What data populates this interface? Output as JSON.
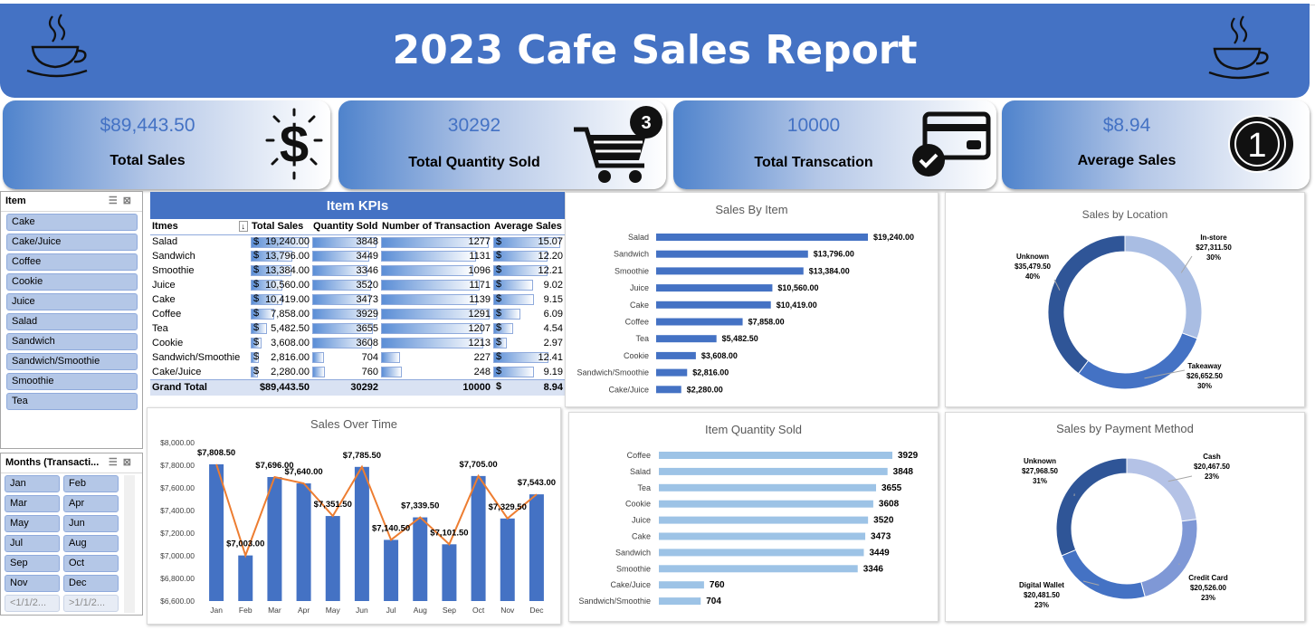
{
  "header": {
    "title": "2023 Cafe Sales Report"
  },
  "kpis": [
    {
      "value": "$89,443.50",
      "label": "Total Sales",
      "icon": "dollar-icon"
    },
    {
      "value": "30292",
      "label": "Total Quantity Sold",
      "icon": "shopping-cart-icon",
      "badge": "3"
    },
    {
      "value": "10000",
      "label": "Total Transcation",
      "icon": "credit-card-icon"
    },
    {
      "value": "$8.94",
      "label": "Average Sales",
      "icon": "coin-icon",
      "coin": "1"
    }
  ],
  "item_slicer": {
    "title": "Item",
    "items": [
      "Cake",
      "Cake/Juice",
      "Coffee",
      "Cookie",
      "Juice",
      "Salad",
      "Sandwich",
      "Sandwich/Smoothie",
      "Smoothie",
      "Tea"
    ]
  },
  "month_slicer": {
    "title": "Months (Transacti...",
    "items": [
      "Jan",
      "Feb",
      "Mar",
      "Apr",
      "May",
      "Jun",
      "Jul",
      "Aug",
      "Sep",
      "Oct",
      "Nov",
      "Dec",
      "<1/1/2...",
      ">1/1/2..."
    ]
  },
  "item_kpis": {
    "title": "Item KPIs",
    "headers": [
      "Itmes",
      "Total Sales",
      "Quantity Sold",
      "Number of Transaction",
      "Average Sales"
    ],
    "rows": [
      {
        "item": "Salad",
        "sales_d": "$",
        "sales": "19,240.00",
        "sales_v": 19240,
        "qty": 3848,
        "trans": 1277,
        "avg_d": "$",
        "avg": "15.07",
        "avg_v": 15.07
      },
      {
        "item": "Sandwich",
        "sales_d": "$",
        "sales": "13,796.00",
        "sales_v": 13796,
        "qty": 3449,
        "trans": 1131,
        "avg_d": "$",
        "avg": "12.20",
        "avg_v": 12.2
      },
      {
        "item": "Smoothie",
        "sales_d": "$",
        "sales": "13,384.00",
        "sales_v": 13384,
        "qty": 3346,
        "trans": 1096,
        "avg_d": "$",
        "avg": "12.21",
        "avg_v": 12.21
      },
      {
        "item": "Juice",
        "sales_d": "$",
        "sales": "10,560.00",
        "sales_v": 10560,
        "qty": 3520,
        "trans": 1171,
        "avg_d": "$",
        "avg": "9.02",
        "avg_v": 9.02
      },
      {
        "item": "Cake",
        "sales_d": "$",
        "sales": "10,419.00",
        "sales_v": 10419,
        "qty": 3473,
        "trans": 1139,
        "avg_d": "$",
        "avg": "9.15",
        "avg_v": 9.15
      },
      {
        "item": "Coffee",
        "sales_d": "$",
        "sales": "7,858.00",
        "sales_v": 7858,
        "qty": 3929,
        "trans": 1291,
        "avg_d": "$",
        "avg": "6.09",
        "avg_v": 6.09
      },
      {
        "item": "Tea",
        "sales_d": "$",
        "sales": "5,482.50",
        "sales_v": 5482.5,
        "qty": 3655,
        "trans": 1207,
        "avg_d": "$",
        "avg": "4.54",
        "avg_v": 4.54
      },
      {
        "item": "Cookie",
        "sales_d": "$",
        "sales": "3,608.00",
        "sales_v": 3608,
        "qty": 3608,
        "trans": 1213,
        "avg_d": "$",
        "avg": "2.97",
        "avg_v": 2.97
      },
      {
        "item": "Sandwich/Smoothie",
        "sales_d": "$",
        "sales": "2,816.00",
        "sales_v": 2816,
        "qty": 704,
        "trans": 227,
        "avg_d": "$",
        "avg": "12.41",
        "avg_v": 12.41
      },
      {
        "item": "Cake/Juice",
        "sales_d": "$",
        "sales": "2,280.00",
        "sales_v": 2280,
        "qty": 760,
        "trans": 248,
        "avg_d": "$",
        "avg": "9.19",
        "avg_v": 9.19
      }
    ],
    "total": {
      "item": "Grand Total",
      "sales": "$89,443.50",
      "qty": "30292",
      "trans": "10000",
      "avg_d": "$",
      "avg": "8.94"
    }
  },
  "chart_data": [
    {
      "id": "sales-by-item",
      "type": "bar",
      "orientation": "horizontal",
      "title": "Sales By Item",
      "categories": [
        "Salad",
        "Sandwich",
        "Smoothie",
        "Juice",
        "Cake",
        "Coffee",
        "Tea",
        "Cookie",
        "Sandwich/Smoothie",
        "Cake/Juice"
      ],
      "values": [
        19240,
        13796,
        13384,
        10560,
        10419,
        7858,
        5482.5,
        3608,
        2816,
        2280
      ],
      "labels": [
        "$19,240.00",
        "$13,796.00",
        "$13,384.00",
        "$10,560.00",
        "$10,419.00",
        "$7,858.00",
        "$5,482.50",
        "$3,608.00",
        "$2,816.00",
        "$2,280.00"
      ],
      "color": "#4472c4"
    },
    {
      "id": "item-quantity-sold",
      "type": "bar",
      "orientation": "horizontal",
      "title": "Item Quantity Sold",
      "categories": [
        "Coffee",
        "Salad",
        "Tea",
        "Cookie",
        "Juice",
        "Cake",
        "Sandwich",
        "Smoothie",
        "Cake/Juice",
        "Sandwich/Smoothie"
      ],
      "values": [
        3929,
        3848,
        3655,
        3608,
        3520,
        3473,
        3449,
        3346,
        760,
        704
      ],
      "labels": [
        "3929",
        "3848",
        "3655",
        "3608",
        "3520",
        "3473",
        "3449",
        "3346",
        "760",
        "704"
      ],
      "color": "#9dc3e6"
    },
    {
      "id": "sales-by-location",
      "type": "pie",
      "donut": true,
      "title": "Sales by Location",
      "slices": [
        {
          "name": "In-store",
          "value": 27311.5,
          "label": "$27,311.50",
          "pct": "30%",
          "color": "#a9bde3"
        },
        {
          "name": "Takeaway",
          "value": 26652.5,
          "label": "$26,652.50",
          "pct": "30%",
          "color": "#4472c4"
        },
        {
          "name": "Unknown",
          "value": 35479.5,
          "label": "$35,479.50",
          "pct": "40%",
          "color": "#2f5597"
        }
      ]
    },
    {
      "id": "sales-by-payment",
      "type": "pie",
      "donut": true,
      "title": "Sales by Payment Method",
      "slices": [
        {
          "name": "Cash",
          "value": 20467.5,
          "label": "$20,467.50",
          "pct": "23%",
          "color": "#b4c2e6"
        },
        {
          "name": "Credit Card",
          "value": 20526,
          "label": "$20,526.00",
          "pct": "23%",
          "color": "#7f98d6"
        },
        {
          "name": "Digital Wallet",
          "value": 20481.5,
          "label": "$20,481.50",
          "pct": "23%",
          "color": "#4472c4"
        },
        {
          "name": "Unknown",
          "value": 27968.5,
          "label": "$27,968.50",
          "pct": "31%",
          "color": "#2f5597"
        }
      ]
    },
    {
      "id": "sales-over-time",
      "type": "bar",
      "overlay": "line",
      "title": "Sales Over Time",
      "categories": [
        "Jan",
        "Feb",
        "Mar",
        "Apr",
        "May",
        "Jun",
        "Jul",
        "Aug",
        "Sep",
        "Oct",
        "Nov",
        "Dec"
      ],
      "values": [
        7808.5,
        7003,
        7696,
        7640,
        7351.5,
        7785.5,
        7140.5,
        7339.5,
        7101.5,
        7705,
        7329.5,
        7543
      ],
      "labels": [
        "$7,808.50",
        "$7,003.00",
        "$7,696.00",
        "$7,640.00",
        "$7,351.50",
        "$7,785.50",
        "$7,140.50",
        "$7,339.50",
        "$7,101.50",
        "$7,705.00",
        "$7,329.50",
        "$7,543.00"
      ],
      "ylim": [
        6600,
        8000
      ],
      "yticks": [
        "$6,600.00",
        "$6,800.00",
        "$7,000.00",
        "$7,200.00",
        "$7,400.00",
        "$7,600.00",
        "$7,800.00",
        "$8,000.00"
      ],
      "bar_color": "#4472c4",
      "line_color": "#ed7d31"
    }
  ]
}
